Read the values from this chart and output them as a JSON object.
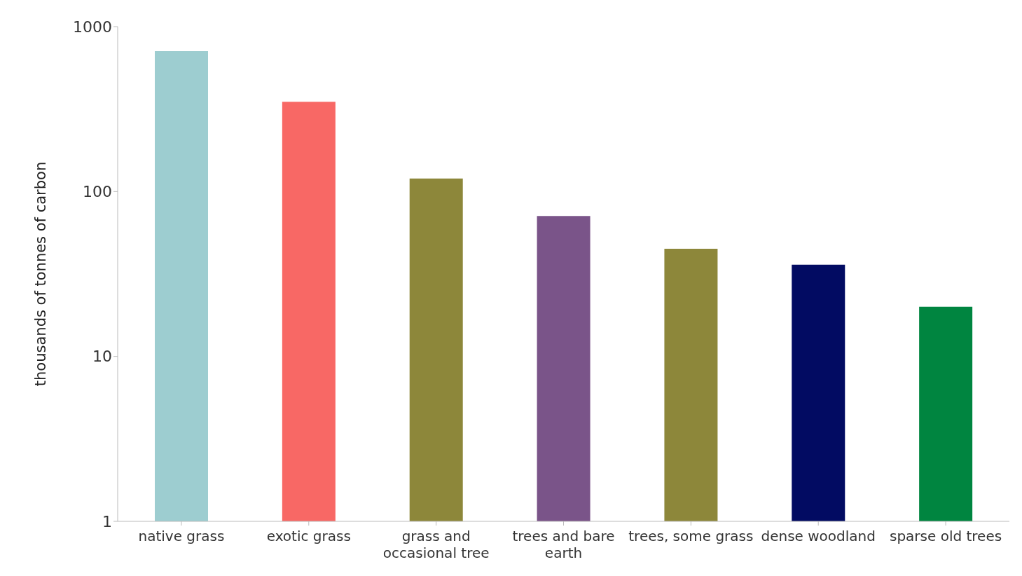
{
  "chart_data": {
    "type": "bar",
    "ylabel": "thousands of tonnes of carbon",
    "categories": [
      "native grass",
      "exotic grass",
      "grass and occasional tree",
      "trees and bare earth",
      "trees, some grass",
      "dense woodland",
      "sparse old trees"
    ],
    "values": [
      710,
      350,
      120,
      71,
      45,
      36,
      20
    ],
    "colors": [
      "#9dcdd0",
      "#f86865",
      "#8d873a",
      "#7a5489",
      "#8d873a",
      "#020b62",
      "#008540"
    ],
    "log": true,
    "ylim": [
      1,
      1000
    ],
    "yticks": [
      1,
      10,
      100,
      1000
    ],
    "grid": false
  }
}
